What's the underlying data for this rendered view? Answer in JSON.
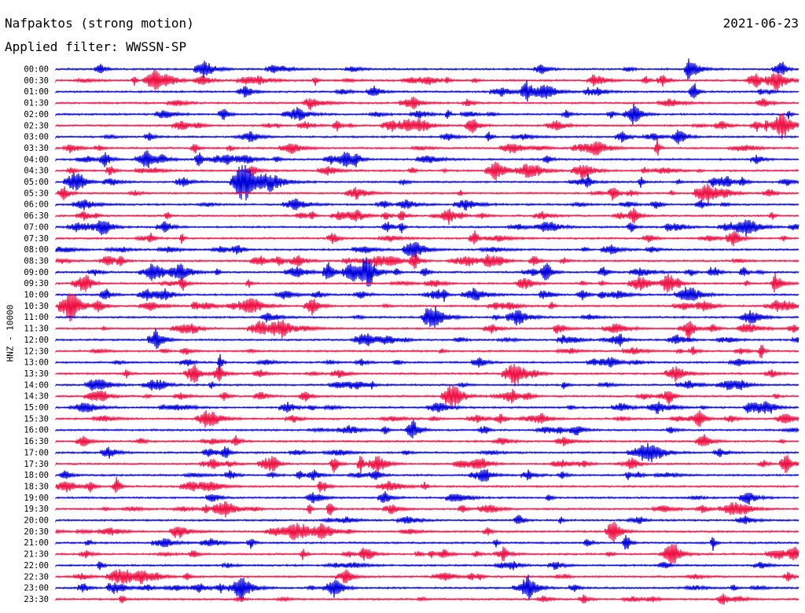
{
  "header": {
    "title": "Nafpaktos (strong motion)",
    "date": "2021-06-23",
    "filter": "Applied filter: WWSSN-SP"
  },
  "chart_data": {
    "type": "line",
    "title": "Nafpaktos (strong motion)",
    "ylabel": "HNZ - 10000",
    "colors": [
      "#0000dd",
      "#ee1144"
    ],
    "grid": false,
    "rows": [
      "00:00",
      "00:30",
      "01:00",
      "01:30",
      "02:00",
      "02:30",
      "03:00",
      "03:30",
      "04:00",
      "04:30",
      "05:00",
      "05:30",
      "06:00",
      "06:30",
      "07:00",
      "07:30",
      "08:00",
      "08:30",
      "09:00",
      "09:30",
      "10:00",
      "10:30",
      "11:00",
      "11:30",
      "12:00",
      "12:30",
      "13:00",
      "13:30",
      "14:00",
      "14:30",
      "15:00",
      "15:30",
      "16:00",
      "16:30",
      "17:00",
      "17:30",
      "18:00",
      "18:30",
      "19:00",
      "19:30",
      "20:00",
      "20:30",
      "21:00",
      "21:30",
      "22:00",
      "22:30",
      "23:00",
      "23:30"
    ]
  }
}
